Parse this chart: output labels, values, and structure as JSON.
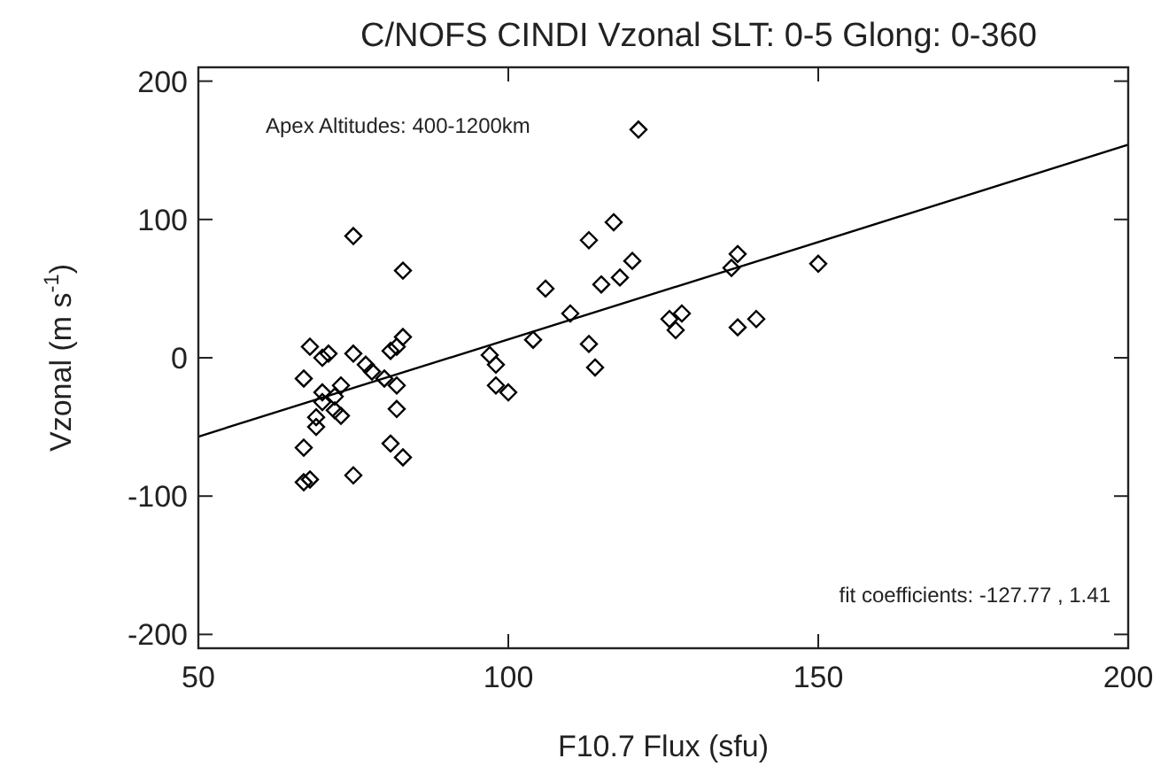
{
  "chart_data": {
    "type": "scatter",
    "title": "C/NOFS CINDI Vzonal SLT: 0-5 Glong: 0-360",
    "xlabel": "F10.7 Flux (sfu)",
    "ylabel": "Vzonal (m s$^{-1}$)",
    "xlim": [
      50,
      200
    ],
    "ylim": [
      -210,
      210
    ],
    "xticks": [
      50,
      100,
      150,
      200
    ],
    "yticks": [
      -200,
      -100,
      0,
      100,
      200
    ],
    "grid": false,
    "annotations": [
      "Apex Altitudes: 400-1200km",
      "fit coefficients: -127.77 , 1.41"
    ],
    "series": [
      {
        "color": "#000000",
        "marker": "diamond",
        "x": [
          75,
          83,
          75,
          77,
          78,
          80,
          81,
          82,
          83,
          82,
          82,
          81,
          83,
          75,
          67,
          68,
          67,
          67,
          68,
          69,
          69,
          70,
          70,
          71,
          72,
          72,
          73,
          73,
          70,
          97,
          98,
          98,
          100,
          104,
          106,
          110,
          113,
          113,
          114,
          115,
          117,
          118,
          120,
          121,
          126,
          127,
          128,
          136,
          137,
          137,
          140,
          150
        ],
        "values": [
          88,
          63,
          3,
          -5,
          -10,
          -15,
          5,
          8,
          15,
          -20,
          -37,
          -62,
          -72,
          -85,
          -90,
          -88,
          -65,
          -15,
          8,
          -43,
          -50,
          -25,
          0,
          3,
          -38,
          -28,
          -20,
          -42,
          -32,
          2,
          -5,
          -20,
          -25,
          13,
          50,
          32,
          85,
          10,
          -7,
          53,
          98,
          58,
          70,
          165,
          28,
          20,
          32,
          65,
          75,
          22,
          28,
          68
        ]
      },
      {
        "type": "line",
        "color": "#000000",
        "marker": "none",
        "line_style": "solid",
        "x": [
          50,
          200
        ],
        "values": [
          -57,
          154
        ]
      }
    ]
  }
}
